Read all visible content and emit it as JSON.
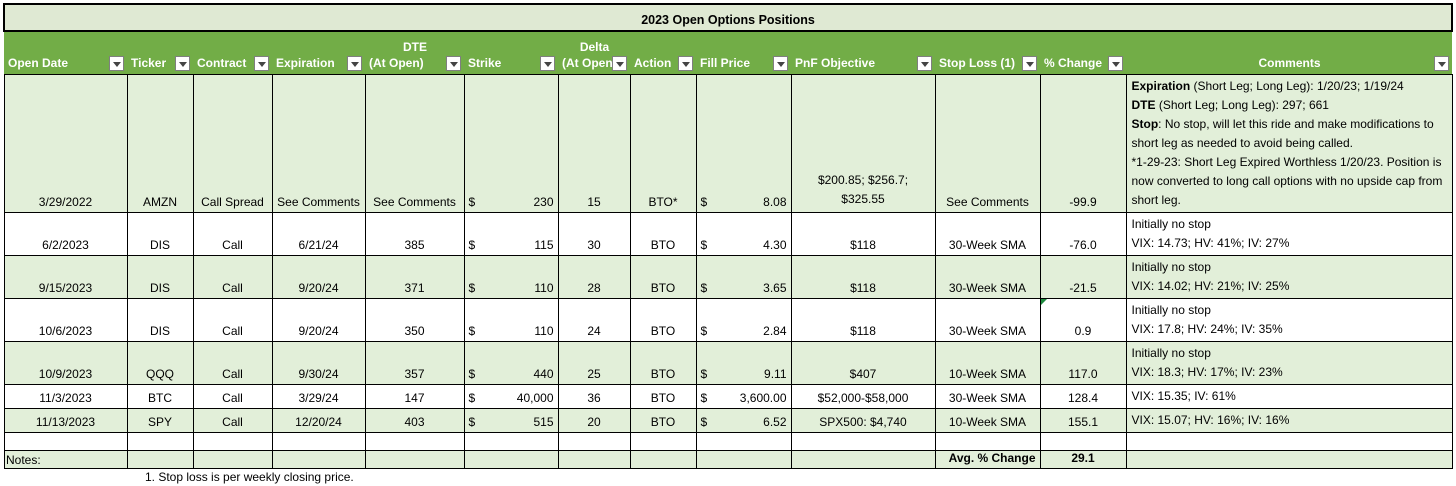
{
  "title": "2023 Open Options Positions",
  "headers": [
    {
      "top": "",
      "bottom": "Open Date"
    },
    {
      "top": "",
      "bottom": "Ticker"
    },
    {
      "top": "",
      "bottom": "Contract"
    },
    {
      "top": "",
      "bottom": "Expiration"
    },
    {
      "top": "DTE",
      "bottom": "(At Open)"
    },
    {
      "top": "",
      "bottom": "Strike"
    },
    {
      "top": "Delta",
      "bottom": "(At Open"
    },
    {
      "top": "",
      "bottom": "Action"
    },
    {
      "top": "",
      "bottom": "Fill Price"
    },
    {
      "top": "",
      "bottom": "PnF Objective"
    },
    {
      "top": "",
      "bottom": "Stop Loss (1)"
    },
    {
      "top": "",
      "bottom": "% Change"
    },
    {
      "top": "",
      "bottom": "Comments"
    }
  ],
  "rows": [
    {
      "open_date": "3/29/2022",
      "ticker": "AMZN",
      "contract": "Call Spread",
      "expiration": "See Comments",
      "dte": "See Comments",
      "strike": "230",
      "delta": "15",
      "action": "BTO*",
      "fill": "8.08",
      "pnf": "$200.85; $256.7; $325.55",
      "stop": "See Comments",
      "change": "-99.9",
      "comments": [
        {
          "b": "Expiration",
          "t": " (Short Leg; Long Leg): 1/20/23; 1/19/24"
        },
        {
          "b": "DTE",
          "t": " (Short Leg; Long Leg): 297; 661"
        },
        {
          "b": "Stop",
          "t": ": No stop, will let this ride and make modifications to short leg as needed to avoid being called."
        },
        {
          "b": "",
          "t": "*1-29-23: Short Leg Expired Worthless 1/20/23. Position is now converted to long call options with no upside cap from short leg."
        }
      ]
    },
    {
      "open_date": "6/2/2023",
      "ticker": "DIS",
      "contract": "Call",
      "expiration": "6/21/24",
      "dte": "385",
      "strike": "115",
      "delta": "30",
      "action": "BTO",
      "fill": "4.30",
      "pnf": "$118",
      "stop": "30-Week SMA",
      "change": "-76.0",
      "comments": [
        {
          "b": "",
          "t": "Initially no stop"
        },
        {
          "b": "",
          "t": "VIX: 14.73; HV: 41%; IV: 27%"
        }
      ]
    },
    {
      "open_date": "9/15/2023",
      "ticker": "DIS",
      "contract": "Call",
      "expiration": "9/20/24",
      "dte": "371",
      "strike": "110",
      "delta": "28",
      "action": "BTO",
      "fill": "3.65",
      "pnf": "$118",
      "stop": "30-Week SMA",
      "change": "-21.5",
      "comments": [
        {
          "b": "",
          "t": "Initially no stop"
        },
        {
          "b": "",
          "t": "VIX: 14.02; HV: 21%; IV: 25%"
        }
      ]
    },
    {
      "open_date": "10/6/2023",
      "ticker": "DIS",
      "contract": "Call",
      "expiration": "9/20/24",
      "dte": "350",
      "strike": "110",
      "delta": "24",
      "action": "BTO",
      "fill": "2.84",
      "pnf": "$118",
      "stop": "30-Week SMA",
      "change": "0.9",
      "comments": [
        {
          "b": "",
          "t": "Initially no stop"
        },
        {
          "b": "",
          "t": "VIX: 17.8; HV: 24%; IV: 35%"
        }
      ]
    },
    {
      "open_date": "10/9/2023",
      "ticker": "QQQ",
      "contract": "Call",
      "expiration": "9/30/24",
      "dte": "357",
      "strike": "440",
      "delta": "25",
      "action": "BTO",
      "fill": "9.11",
      "pnf": "$407",
      "stop": "10-Week SMA",
      "change": "117.0",
      "comments": [
        {
          "b": "",
          "t": "Initially no stop"
        },
        {
          "b": "",
          "t": "VIX: 18.3; HV: 17%; IV: 23%"
        }
      ]
    },
    {
      "open_date": "11/3/2023",
      "ticker": "BTC",
      "contract": "Call",
      "expiration": "3/29/24",
      "dte": "147",
      "strike": "40,000",
      "delta": "36",
      "action": "BTO",
      "fill": "3,600.00",
      "pnf": "$52,000-$58,000",
      "stop": "30-Week SMA",
      "change": "128.4",
      "comments": [
        {
          "b": "",
          "t": "VIX: 15.35; IV: 61%"
        }
      ]
    },
    {
      "open_date": "11/13/2023",
      "ticker": "SPY",
      "contract": "Call",
      "expiration": "12/20/24",
      "dte": "403",
      "strike": "515",
      "delta": "20",
      "action": "BTO",
      "fill": "6.52",
      "pnf": "SPX500: $4,740",
      "stop": "10-Week SMA",
      "change": "155.1",
      "comments": [
        {
          "b": "",
          "t": "VIX: 15.07; HV: 16%; IV: 16%"
        }
      ]
    }
  ],
  "currency_symbol": "$",
  "avg_label": "Avg. % Change",
  "avg_value": "29.1",
  "notes_label": "Notes:",
  "note_1": "1.  Stop loss is per weekly closing price."
}
